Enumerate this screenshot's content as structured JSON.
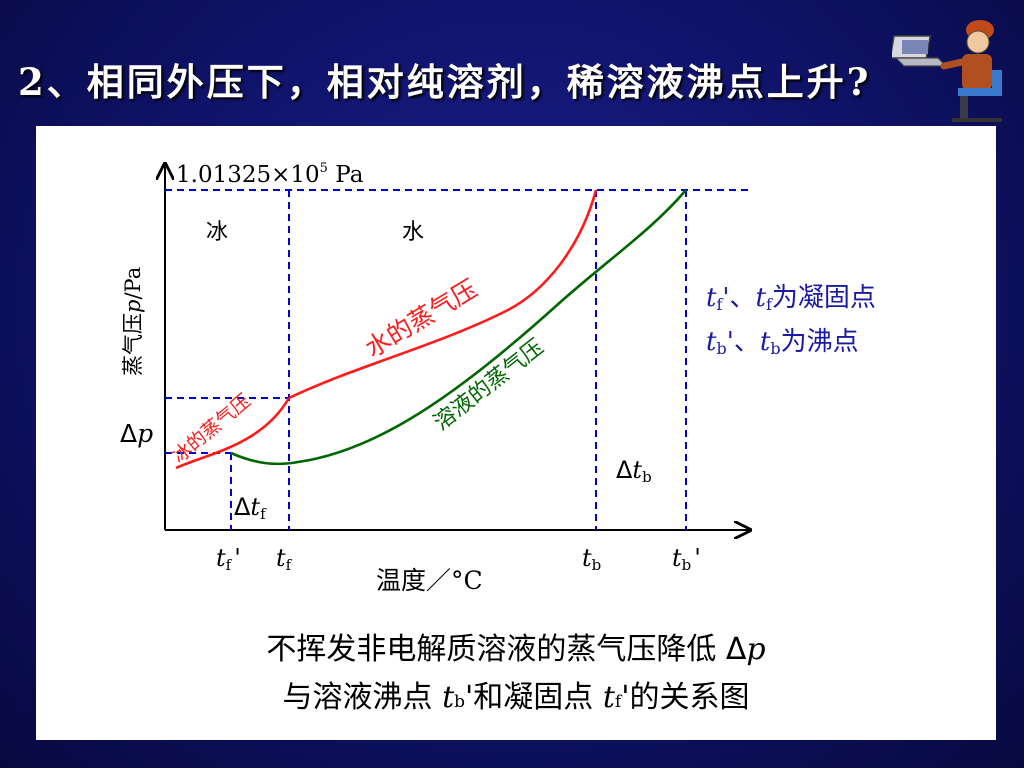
{
  "slide": {
    "title": "2、相同外压下，相对纯溶剂，稀溶液沸点上升?"
  },
  "colors": {
    "background": "#10146a",
    "water_curve": "#ff1a1a",
    "solution_curve": "#006600",
    "guide_lines": "#0000cc",
    "note_text": "#1a1aa6"
  },
  "diagram": {
    "pressure_label": "1.01325×10",
    "pressure_exp": "5",
    "pressure_unit": " Pa",
    "y_axis_label_cn": "蒸气压",
    "y_axis_label_sym": "p",
    "y_axis_label_unit": "/Pa",
    "x_axis_label": "温度／°C",
    "region_ice": "冰",
    "region_water": "水",
    "curve_water_label": "水的蒸气压",
    "curve_ice_label": "冰的蒸气压",
    "curve_solution_label": "溶液的蒸气压",
    "delta": "Δ",
    "p": "p",
    "t": "t",
    "sub_f": "f",
    "sub_b": "b",
    "prime": "'",
    "note_line1_a": "'、",
    "note_line1_b": "为凝固点",
    "note_line2_a": "'、",
    "note_line2_b": "为沸点"
  },
  "caption": {
    "line1": "不挥发非电解质溶液的蒸气压降低",
    "line1_delta": "Δ",
    "line1_p": "p",
    "line2_a": "与溶液沸点",
    "line2_b": "'和凝固点",
    "line2_c": "'的关系图"
  }
}
